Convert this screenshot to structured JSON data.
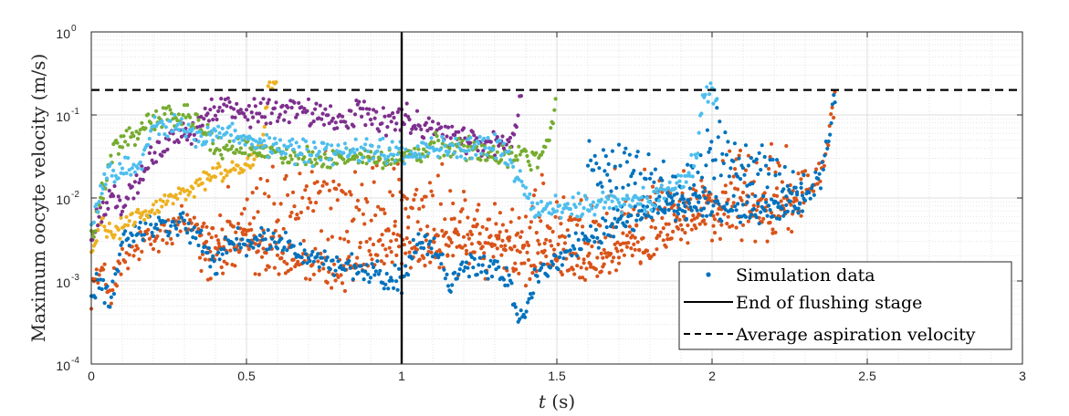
{
  "chart_data": {
    "type": "scatter",
    "title": "",
    "xlabel": {
      "var": "t",
      "unit": " (s)"
    },
    "ylabel": "Maximum oocyte velocity (m/s)",
    "xscale": "linear",
    "yscale": "log",
    "xlim": [
      0,
      3
    ],
    "ylim": [
      0.0001,
      1
    ],
    "xticks": [
      0,
      0.5,
      1,
      1.5,
      2,
      2.5,
      3
    ],
    "xtick_labels": [
      "0",
      "0.5",
      "1",
      "1.5",
      "2",
      "2.5",
      "3"
    ],
    "yticks": [
      {
        "value": 0.0001,
        "base": "10",
        "exp": "-4"
      },
      {
        "value": 0.001,
        "base": "10",
        "exp": "-3"
      },
      {
        "value": 0.01,
        "base": "10",
        "exp": "-2"
      },
      {
        "value": 0.1,
        "base": "10",
        "exp": "-1"
      },
      {
        "value": 1,
        "base": "10",
        "exp": "0"
      }
    ],
    "grid": true,
    "minor_grid": true,
    "legend_position": "bottom-right",
    "legend": [
      {
        "label": "Simulation data",
        "style": "dot",
        "color": "#0072BD"
      },
      {
        "label": "End of flushing stage",
        "style": "solid",
        "color": "#000000"
      },
      {
        "label": "Average aspiration velocity",
        "style": "dashed",
        "color": "#000000"
      }
    ],
    "reference_lines": [
      {
        "orientation": "vertical",
        "x": 1.0,
        "style": "solid",
        "color": "#000000"
      },
      {
        "orientation": "horizontal",
        "y": 0.2,
        "style": "dashed",
        "color": "#000000"
      }
    ],
    "series": [
      {
        "color": "#D95319",
        "spread": 2.0,
        "x": [
          0,
          0.03,
          0.06,
          0.1,
          0.15,
          0.2,
          0.3,
          0.35,
          0.4,
          0.5,
          0.55,
          0.6,
          0.7,
          0.8,
          0.9,
          1.0,
          1.05,
          1.1,
          1.2,
          1.3,
          1.35,
          1.4,
          1.5,
          1.6,
          1.7,
          1.8,
          1.9,
          2.0,
          2.1,
          2.2,
          2.25,
          2.3,
          2.34,
          2.37,
          2.4
        ],
        "y": [
          0.0009,
          0.0012,
          0.0008,
          0.0015,
          0.0025,
          0.003,
          0.005,
          0.005,
          0.003,
          0.003,
          0.0025,
          0.002,
          0.0015,
          0.0012,
          0.002,
          0.003,
          0.002,
          0.0025,
          0.0025,
          0.003,
          0.0025,
          0.0015,
          0.002,
          0.0015,
          0.002,
          0.003,
          0.005,
          0.007,
          0.008,
          0.007,
          0.008,
          0.012,
          0.02,
          0.05,
          0.2
        ]
      },
      {
        "color": "#D95319",
        "spread": 5.0,
        "x": [
          0.35,
          0.45,
          0.55,
          0.65,
          0.75,
          0.85,
          0.95,
          1.0,
          1.1,
          1.2,
          1.3,
          1.4,
          1.5,
          1.6,
          1.7,
          1.8,
          1.9,
          2.0,
          2.1,
          2.2,
          2.3
        ],
        "y": [
          0.002,
          0.003,
          0.005,
          0.008,
          0.01,
          0.01,
          0.009,
          0.008,
          0.006,
          0.004,
          0.003,
          0.004,
          0.004,
          0.004,
          0.005,
          0.008,
          0.01,
          0.008,
          0.01,
          0.012,
          0.012
        ]
      },
      {
        "color": "#0072BD",
        "spread": 1.6,
        "x": [
          0,
          0.03,
          0.06,
          0.1,
          0.15,
          0.2,
          0.3,
          0.35,
          0.4,
          0.45,
          0.5,
          0.6,
          0.7,
          0.8,
          0.9,
          1.0,
          1.05,
          1.1,
          1.15,
          1.2,
          1.3,
          1.35,
          1.38,
          1.45,
          1.5,
          1.6,
          1.7,
          1.8,
          1.9,
          2.0,
          2.1,
          2.2,
          2.3,
          2.35,
          2.38,
          2.4
        ],
        "y": [
          0.0006,
          0.001,
          0.0005,
          0.003,
          0.004,
          0.005,
          0.005,
          0.003,
          0.0015,
          0.003,
          0.003,
          0.003,
          0.002,
          0.0015,
          0.0012,
          0.001,
          0.003,
          0.003,
          0.001,
          0.0015,
          0.0015,
          0.001,
          0.0003,
          0.0015,
          0.002,
          0.003,
          0.005,
          0.007,
          0.008,
          0.008,
          0.007,
          0.007,
          0.01,
          0.02,
          0.06,
          0.2
        ]
      },
      {
        "color": "#0072BD",
        "spread": 3.0,
        "x": [
          1.6,
          1.65,
          1.7,
          1.8,
          1.9,
          1.95,
          2.02,
          2.1,
          2.2,
          2.3
        ],
        "y": [
          0.03,
          0.02,
          0.02,
          0.015,
          0.01,
          0.02,
          0.05,
          0.02,
          0.015,
          0.015
        ]
      },
      {
        "color": "#EDB120",
        "spread": 1.4,
        "x": [
          0,
          0.03,
          0.05,
          0.08,
          0.1,
          0.15,
          0.2,
          0.25,
          0.3,
          0.35,
          0.4,
          0.45,
          0.5,
          0.55,
          0.57,
          0.6
        ],
        "y": [
          0.002,
          0.005,
          0.004,
          0.0035,
          0.005,
          0.006,
          0.007,
          0.01,
          0.012,
          0.015,
          0.02,
          0.02,
          0.025,
          0.04,
          0.2,
          0.22
        ]
      },
      {
        "color": "#7E2F8E",
        "spread": 1.6,
        "x": [
          0,
          0.05,
          0.1,
          0.15,
          0.2,
          0.25,
          0.3,
          0.35,
          0.4,
          0.45,
          0.5,
          0.55,
          0.6,
          0.65,
          0.7,
          0.75,
          0.8,
          0.85,
          0.9,
          0.95,
          1.0,
          1.05,
          1.1,
          1.15,
          1.2,
          1.25,
          1.3,
          1.35,
          1.37,
          1.38,
          1.39
        ],
        "y": [
          0.004,
          0.01,
          0.008,
          0.015,
          0.03,
          0.05,
          0.06,
          0.08,
          0.12,
          0.12,
          0.1,
          0.12,
          0.1,
          0.12,
          0.1,
          0.1,
          0.08,
          0.1,
          0.1,
          0.08,
          0.1,
          0.08,
          0.07,
          0.06,
          0.05,
          0.045,
          0.045,
          0.05,
          0.07,
          0.15,
          0.2
        ]
      },
      {
        "color": "#77AC30",
        "spread": 1.5,
        "x": [
          0,
          0.03,
          0.05,
          0.08,
          0.1,
          0.15,
          0.2,
          0.25,
          0.3,
          0.35,
          0.4,
          0.45,
          0.5,
          0.55,
          0.6,
          0.65,
          0.7,
          0.8,
          0.9,
          1.0,
          1.05,
          1.1,
          1.15,
          1.2,
          1.25,
          1.3,
          1.35,
          1.4,
          1.45,
          1.48,
          1.5
        ],
        "y": [
          0.003,
          0.01,
          0.02,
          0.04,
          0.05,
          0.06,
          0.09,
          0.09,
          0.1,
          0.08,
          0.04,
          0.035,
          0.04,
          0.035,
          0.035,
          0.03,
          0.03,
          0.03,
          0.03,
          0.03,
          0.035,
          0.04,
          0.045,
          0.04,
          0.035,
          0.035,
          0.035,
          0.03,
          0.03,
          0.06,
          0.2
        ]
      },
      {
        "color": "#4DBEEE",
        "spread": 1.5,
        "x": [
          0,
          0.03,
          0.05,
          0.1,
          0.15,
          0.2,
          0.25,
          0.3,
          0.35,
          0.4,
          0.45,
          0.5,
          0.6,
          0.7,
          0.8,
          0.9,
          1.0,
          1.1,
          1.2,
          1.3,
          1.35,
          1.4,
          1.45,
          1.5,
          1.6,
          1.7,
          1.8,
          1.85,
          1.9,
          1.95,
          1.97,
          2.0,
          2.02
        ],
        "y": [
          0.005,
          0.01,
          0.02,
          0.025,
          0.02,
          0.08,
          0.07,
          0.07,
          0.05,
          0.06,
          0.06,
          0.05,
          0.04,
          0.035,
          0.035,
          0.04,
          0.035,
          0.04,
          0.04,
          0.04,
          0.03,
          0.01,
          0.007,
          0.0075,
          0.008,
          0.009,
          0.01,
          0.012,
          0.015,
          0.03,
          0.15,
          0.2,
          0.2
        ]
      }
    ]
  }
}
